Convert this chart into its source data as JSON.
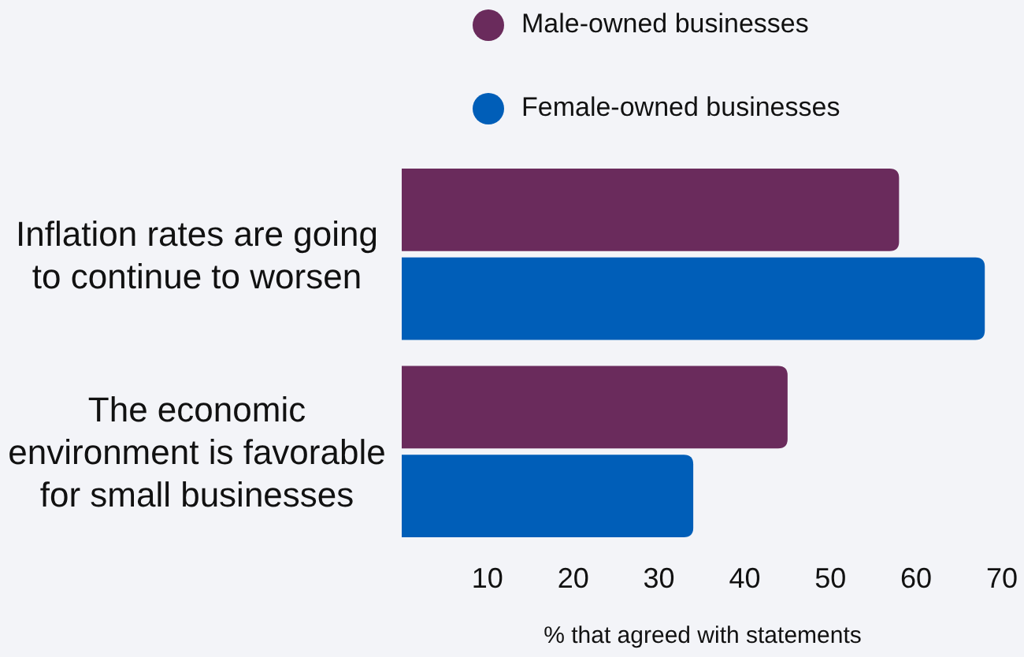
{
  "chart_data": {
    "type": "bar",
    "orientation": "horizontal",
    "xlabel": "% that agreed with statements",
    "categories": [
      "Inflation rates are going to continue to worsen",
      "The economic environment is favorable for small businesses"
    ],
    "series": [
      {
        "name": "Male-owned businesses",
        "color": "#6a2b5c",
        "values": [
          58,
          45
        ]
      },
      {
        "name": "Female-owned businesses",
        "color": "#005eb8",
        "values": [
          68,
          34
        ]
      }
    ],
    "xlim": [
      0,
      70
    ],
    "xticks": [
      10,
      20,
      30,
      40,
      50,
      60,
      70
    ],
    "grid": false,
    "legend": "top"
  }
}
